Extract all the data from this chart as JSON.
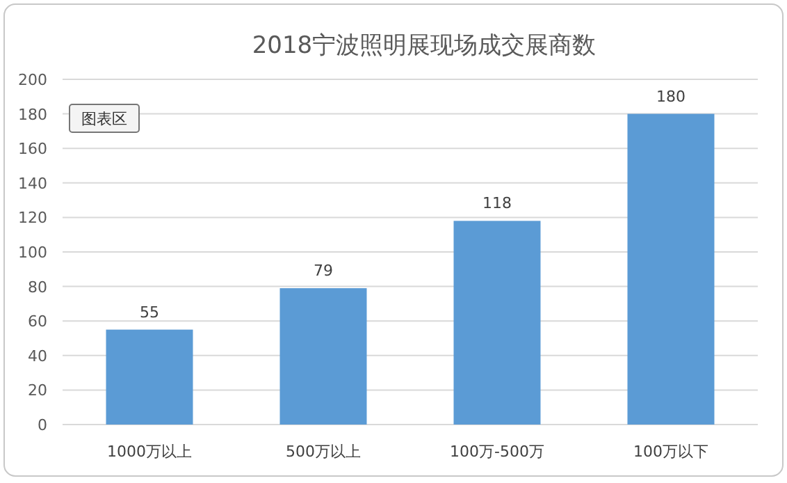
{
  "chart_data": {
    "type": "bar",
    "title": "2018宁波照明展现场成交展商数",
    "categories": [
      "1000万以上",
      "500万以上",
      "100万-500万",
      "100万以下"
    ],
    "series": [
      {
        "color": "#5b9bd5",
        "values": [
          55,
          79,
          118,
          180
        ]
      }
    ],
    "ylim": [
      0,
      200
    ],
    "yticks": [
      0,
      20,
      40,
      60,
      80,
      100,
      120,
      140,
      160,
      180,
      200
    ],
    "grid": "y",
    "data_labels": true,
    "annotations": [
      "图表区"
    ]
  }
}
